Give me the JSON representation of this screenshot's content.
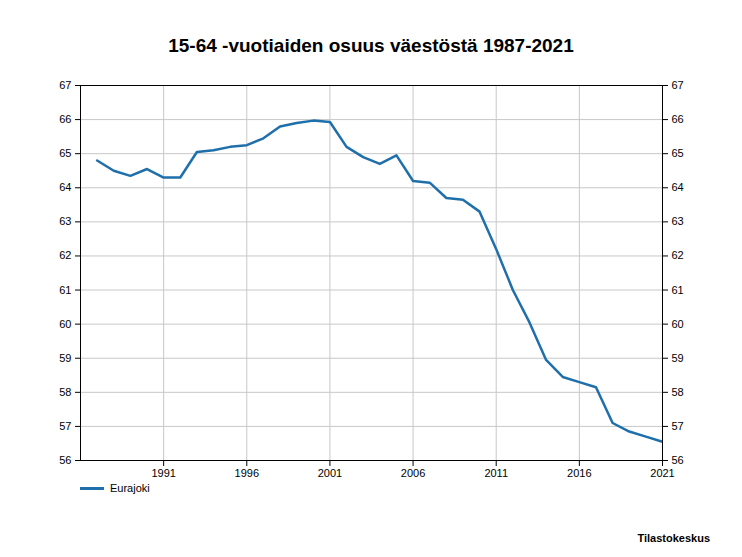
{
  "chart_data": {
    "type": "line",
    "title": "15-64 -vuotiaiden osuus väestöstä 1987-2021",
    "caption": "Tilastokeskus",
    "x": [
      1987,
      1988,
      1989,
      1990,
      1991,
      1992,
      1993,
      1994,
      1995,
      1996,
      1997,
      1998,
      1999,
      2000,
      2001,
      2002,
      2003,
      2004,
      2005,
      2006,
      2007,
      2008,
      2009,
      2010,
      2011,
      2012,
      2013,
      2014,
      2015,
      2016,
      2017,
      2018,
      2019,
      2020,
      2021
    ],
    "series": [
      {
        "name": "Eurajoki",
        "color": "#1f6fab",
        "values": [
          64.8,
          64.5,
          64.35,
          64.55,
          64.3,
          64.3,
          65.05,
          65.1,
          65.2,
          65.25,
          65.45,
          65.8,
          65.9,
          65.97,
          65.93,
          65.2,
          64.9,
          64.7,
          64.95,
          64.2,
          64.15,
          63.7,
          63.65,
          63.3,
          62.2,
          61.0,
          60.05,
          58.95,
          58.45,
          58.3,
          58.15,
          57.1,
          56.85,
          56.7,
          56.55
        ]
      }
    ],
    "xlim": [
      1986,
      2021
    ],
    "xticks": [
      1991,
      1996,
      2001,
      2006,
      2011,
      2016,
      2021
    ],
    "ylim": [
      56,
      67
    ],
    "yticks": [
      56,
      57,
      58,
      59,
      60,
      61,
      62,
      63,
      64,
      65,
      66,
      67
    ],
    "y2lim": [
      56,
      67
    ],
    "y2ticks": [
      56,
      57,
      58,
      59,
      60,
      61,
      62,
      63,
      64,
      65,
      66,
      67
    ],
    "grid": true,
    "legend": "bottom-left"
  }
}
